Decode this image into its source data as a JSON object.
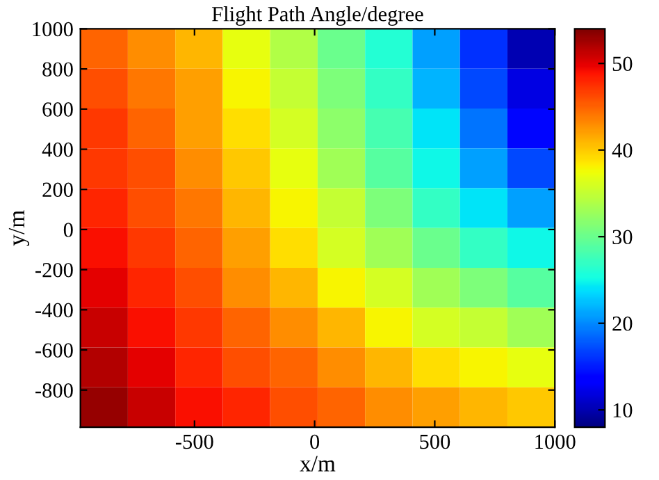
{
  "chart_data": {
    "type": "heatmap",
    "title": "Flight Path Angle/degree",
    "xlabel": "x/m",
    "ylabel": "y/m",
    "x": [
      -876,
      -679,
      -481,
      -284,
      -86,
      111,
      309,
      506,
      704,
      901
    ],
    "y": [
      901,
      702,
      504,
      305,
      107,
      -92,
      -290,
      -489,
      -687,
      -886
    ],
    "cells": [
      [
        45,
        43,
        41,
        37,
        34,
        30,
        26,
        21,
        16,
        10
      ],
      [
        46,
        44,
        42,
        38,
        35,
        31,
        27,
        22,
        17,
        12
      ],
      [
        47,
        45,
        42,
        39,
        36,
        32,
        28,
        24,
        19,
        14
      ],
      [
        47,
        46,
        43,
        40,
        37,
        33,
        29,
        25,
        21,
        17
      ],
      [
        48,
        46,
        44,
        41,
        38,
        35,
        31,
        27,
        24,
        21
      ],
      [
        49,
        47,
        45,
        42,
        39,
        36,
        33,
        30,
        27,
        25
      ],
      [
        50,
        48,
        46,
        43,
        41,
        38,
        36,
        33,
        31,
        29
      ],
      [
        51,
        49,
        47,
        45,
        43,
        41,
        38,
        36,
        35,
        33
      ],
      [
        52,
        50,
        48,
        46,
        45,
        43,
        41,
        39,
        38,
        37
      ],
      [
        53,
        51,
        49,
        48,
        46,
        45,
        43,
        42,
        41,
        40
      ]
    ],
    "xlim": [
      -975,
      1000
    ],
    "ylim": [
      -985,
      1000
    ],
    "xticks": [
      -500,
      0,
      500,
      1000
    ],
    "yticks": [
      -800,
      -600,
      -400,
      -200,
      0,
      200,
      400,
      600,
      800,
      1000
    ],
    "clim": [
      8,
      54
    ],
    "cticks": [
      10,
      20,
      30,
      40,
      50
    ]
  }
}
